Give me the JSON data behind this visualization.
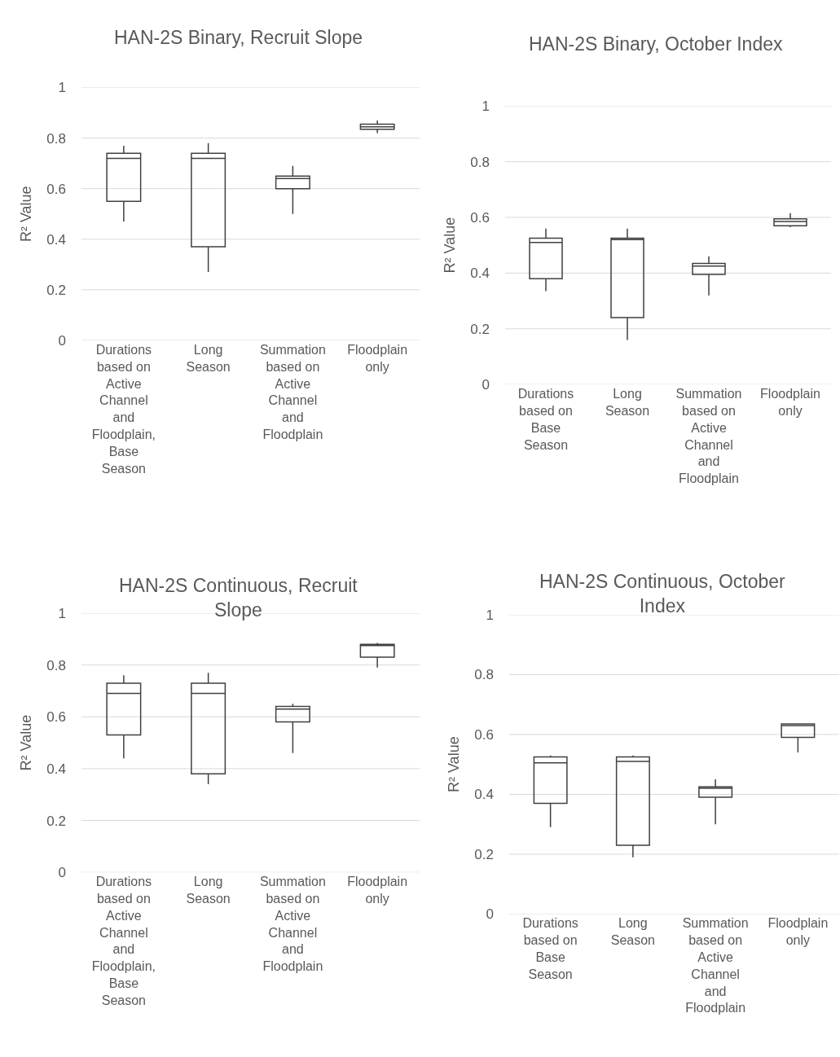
{
  "chart_data": [
    {
      "type": "box",
      "title": "HAN-2S Binary, Recruit Slope",
      "ylabel": "R² Value",
      "categories": [
        "Durations based on Active Channel and Floodplain, Base Season",
        "Long Season",
        "Summation based on Active Channel and Floodplain",
        "Floodplain only"
      ],
      "ylim": [
        0,
        1
      ],
      "yticks": [
        0,
        0.2,
        0.4,
        0.6,
        0.8,
        1
      ],
      "grid": "y",
      "color": "#404040",
      "boxes": [
        {
          "low": 0.47,
          "q1": 0.55,
          "median": 0.72,
          "q3": 0.74,
          "high": 0.77
        },
        {
          "low": 0.27,
          "q1": 0.37,
          "median": 0.72,
          "q3": 0.74,
          "high": 0.78
        },
        {
          "low": 0.5,
          "q1": 0.6,
          "median": 0.64,
          "q3": 0.65,
          "high": 0.69
        },
        {
          "low": 0.82,
          "q1": 0.835,
          "median": 0.845,
          "q3": 0.855,
          "high": 0.87
        }
      ]
    },
    {
      "type": "box",
      "title": "HAN-2S Binary, October Index",
      "ylabel": "R² Value",
      "categories": [
        "Durations based on Base Season",
        "Long Season",
        "Summation based on Active Channel and Floodplain",
        "Floodplain only"
      ],
      "ylim": [
        0,
        1
      ],
      "yticks": [
        0,
        0.2,
        0.4,
        0.6,
        0.8,
        1
      ],
      "grid": "y",
      "color": "#404040",
      "boxes": [
        {
          "low": 0.335,
          "q1": 0.38,
          "median": 0.51,
          "q3": 0.525,
          "high": 0.56
        },
        {
          "low": 0.16,
          "q1": 0.24,
          "median": 0.52,
          "q3": 0.525,
          "high": 0.56
        },
        {
          "low": 0.32,
          "q1": 0.395,
          "median": 0.425,
          "q3": 0.435,
          "high": 0.46
        },
        {
          "low": 0.565,
          "q1": 0.57,
          "median": 0.585,
          "q3": 0.595,
          "high": 0.615
        }
      ]
    },
    {
      "type": "box",
      "title": "HAN-2S Continuous, Recruit Slope",
      "ylabel": "R² Value",
      "categories": [
        "Durations based on Active Channel and Floodplain, Base Season",
        "Long Season",
        "Summation based on Active Channel and Floodplain",
        "Floodplain only"
      ],
      "ylim": [
        0,
        1
      ],
      "yticks": [
        0,
        0.2,
        0.4,
        0.6,
        0.8,
        1
      ],
      "grid": "y",
      "color": "#404040",
      "boxes": [
        {
          "low": 0.44,
          "q1": 0.53,
          "median": 0.69,
          "q3": 0.73,
          "high": 0.76
        },
        {
          "low": 0.34,
          "q1": 0.38,
          "median": 0.69,
          "q3": 0.73,
          "high": 0.77
        },
        {
          "low": 0.46,
          "q1": 0.58,
          "median": 0.63,
          "q3": 0.64,
          "high": 0.65
        },
        {
          "low": 0.79,
          "q1": 0.83,
          "median": 0.875,
          "q3": 0.88,
          "high": 0.885
        }
      ]
    },
    {
      "type": "box",
      "title": "HAN-2S Continuous, October Index",
      "ylabel": "R² Value",
      "categories": [
        "Durations based on Base Season",
        "Long Season",
        "Summation based on Active Channel and Floodplain",
        "Floodplain only"
      ],
      "ylim": [
        0,
        1
      ],
      "yticks": [
        0,
        0.2,
        0.4,
        0.6,
        0.8,
        1
      ],
      "grid": "y",
      "color": "#404040",
      "boxes": [
        {
          "low": 0.29,
          "q1": 0.37,
          "median": 0.505,
          "q3": 0.525,
          "high": 0.53
        },
        {
          "low": 0.19,
          "q1": 0.23,
          "median": 0.51,
          "q3": 0.525,
          "high": 0.53
        },
        {
          "low": 0.3,
          "q1": 0.39,
          "median": 0.42,
          "q3": 0.425,
          "high": 0.45
        },
        {
          "low": 0.54,
          "q1": 0.59,
          "median": 0.63,
          "q3": 0.635,
          "high": 0.635
        }
      ]
    }
  ]
}
